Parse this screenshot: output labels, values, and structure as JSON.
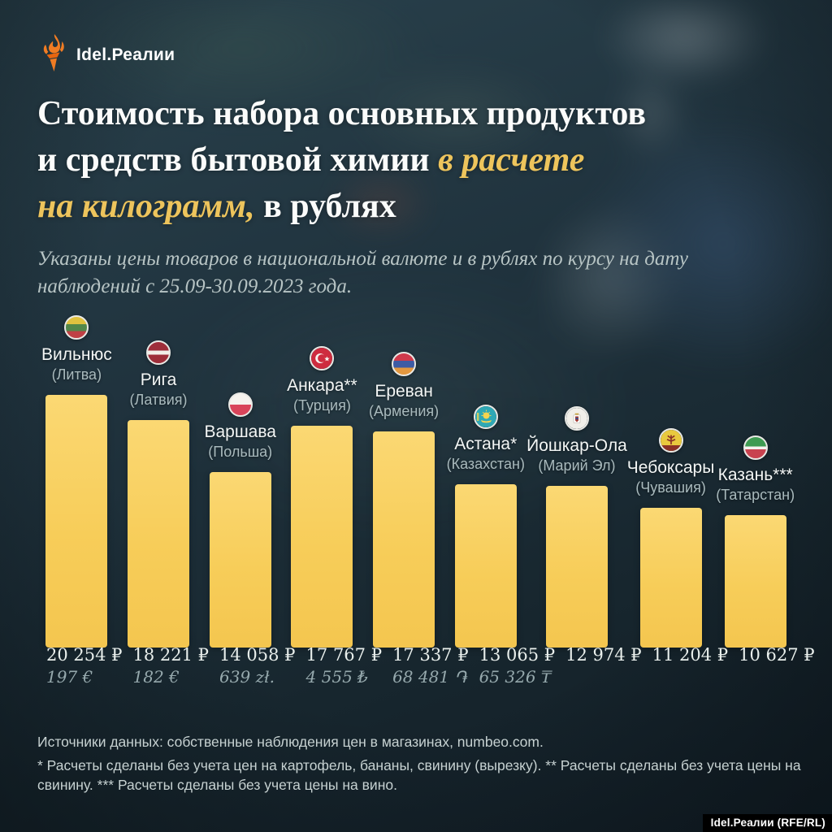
{
  "brand": {
    "logo_text": "Idel.Реалии",
    "attribution": "Idel.Реалии (RFE/RL)"
  },
  "title": {
    "line1": "Стоимость набора основных продуктов",
    "line2_white": "и средств бытовой химии ",
    "line2_accent": "в расчете",
    "line3_accent": "на килограмм,",
    "line3_white": " в рублях"
  },
  "subtitle": "Указаны цены товаров в национальной валюте и в рублях по курсу на дату наблюдений с 25.09-30.09.2023 года.",
  "chart_data": {
    "type": "bar",
    "title": "Стоимость набора основных продуктов и средств бытовой химии в расчете на килограмм, в рублях",
    "unit": "RUB",
    "ylim": [
      0,
      20254
    ],
    "grid": false,
    "legend": "none",
    "bar_color": "#f7cd59",
    "categories": [
      "Вильнюс",
      "Рига",
      "Варшава",
      "Анкара**",
      "Ереван",
      "Астана*",
      "Йошкар-Ола",
      "Чебоксары",
      "Казань***"
    ],
    "bars": [
      {
        "city": "Вильнюс",
        "region": "(Литва)",
        "flag": "lithuania",
        "value_rub": 20254,
        "label_rub": "20 254 ₽",
        "label_local": "197 €"
      },
      {
        "city": "Рига",
        "region": "(Латвия)",
        "flag": "latvia",
        "value_rub": 18221,
        "label_rub": "18 221 ₽",
        "label_local": "182 €"
      },
      {
        "city": "Варшава",
        "region": "(Польша)",
        "flag": "poland",
        "value_rub": 14058,
        "label_rub": "14 058 ₽",
        "label_local": "639 zł."
      },
      {
        "city": "Анкара**",
        "region": "(Турция)",
        "flag": "turkey",
        "value_rub": 17767,
        "label_rub": "17 767 ₽",
        "label_local": "4 555 ₺"
      },
      {
        "city": "Ереван",
        "region": "(Армения)",
        "flag": "armenia",
        "value_rub": 17337,
        "label_rub": "17 337 ₽",
        "label_local": "68 481 ֏"
      },
      {
        "city": "Астана*",
        "region": "(Казахстан)",
        "flag": "kazakhstan",
        "value_rub": 13065,
        "label_rub": "13 065 ₽",
        "label_local": "65 326 ₸"
      },
      {
        "city": "Йошкар-Ола",
        "region": "(Марий Эл)",
        "flag": "mari-el",
        "value_rub": 12974,
        "label_rub": "12 974 ₽",
        "label_local": ""
      },
      {
        "city": "Чебоксары",
        "region": "(Чувашия)",
        "flag": "chuvashia",
        "value_rub": 11204,
        "label_rub": "11 204 ₽",
        "label_local": ""
      },
      {
        "city": "Казань***",
        "region": "(Татарстан)",
        "flag": "tatarstan",
        "value_rub": 10627,
        "label_rub": "10 627 ₽",
        "label_local": ""
      }
    ]
  },
  "footer": {
    "source": "Источники данных: собственные наблюдения цен в магазинах, numbeo.com.",
    "notes": "* Расчеты сделаны без учета цен на картофель, бананы, свинину (вырезку). ** Расчеты сделаны без учета цены на свинину. *** Расчеты сделаны без учета цены на вино."
  },
  "colors": {
    "accent_gold": "#edc45c",
    "bar_top": "#fbd873",
    "bar_bottom": "#f4c64f",
    "background": "#1e3038",
    "text_primary": "#f3f6f5",
    "text_secondary": "#a9babd"
  }
}
